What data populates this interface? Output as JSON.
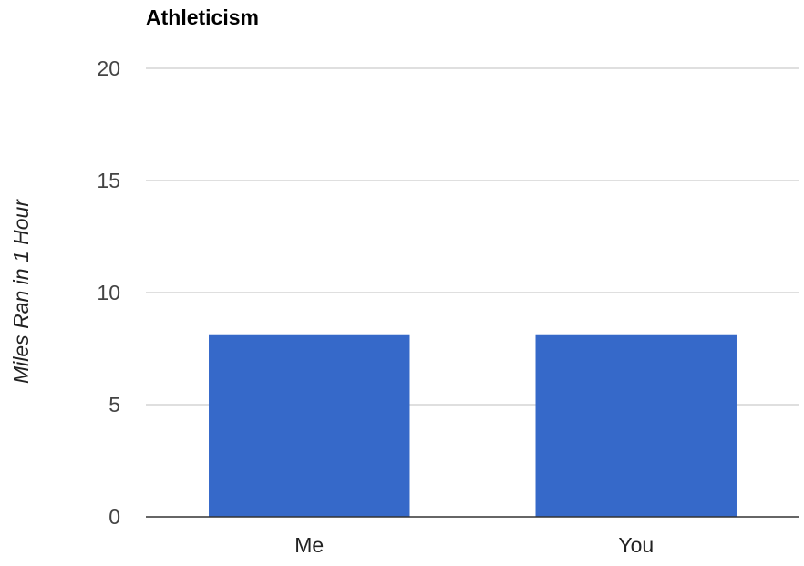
{
  "chart_data": {
    "type": "bar",
    "title": "Athleticism",
    "xlabel": "",
    "ylabel": "Miles Ran in 1 Hour",
    "categories": [
      "Me",
      "You"
    ],
    "values": [
      8.1,
      8.1
    ],
    "ylim": [
      0,
      20
    ],
    "yticks": [
      "0",
      "5",
      "10",
      "15",
      "20"
    ],
    "grid": true,
    "legend": "none",
    "bar_color": "#3669c9",
    "grid_color": "#cccccc",
    "axis_color": "#333333"
  }
}
